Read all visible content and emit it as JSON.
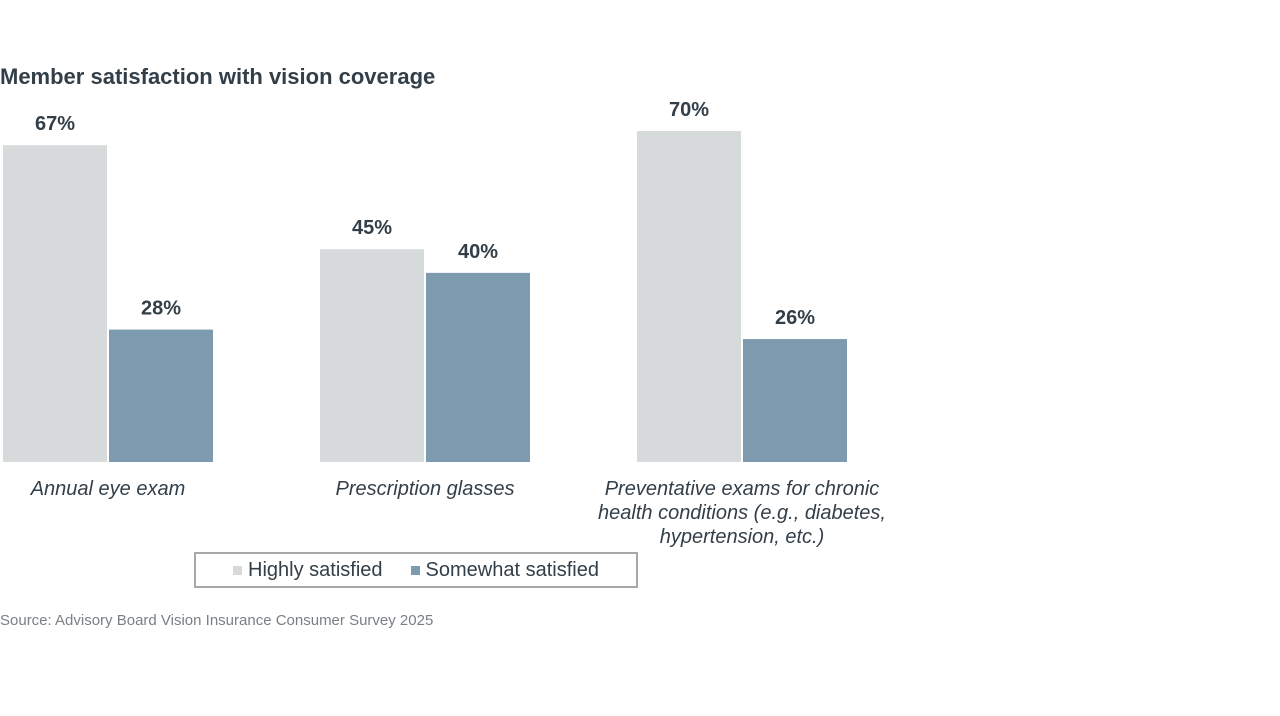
{
  "chart_data": {
    "type": "bar",
    "title": "Member satisfaction with vision coverage",
    "categories": [
      "Annual eye exam",
      "Prescription glasses",
      "Preventative exams for chronic health conditions (e.g., diabetes, hypertension, etc.)"
    ],
    "category_lines": [
      [
        "Annual eye exam"
      ],
      [
        "Prescription glasses"
      ],
      [
        "Preventative exams for chronic",
        "health conditions (e.g., diabetes,",
        "hypertension, etc.)"
      ]
    ],
    "series": [
      {
        "name": "Highly satisfied",
        "color": "#d6dadb",
        "values": [
          67,
          45,
          70
        ],
        "labels": [
          "67%",
          "45%",
          "70%"
        ]
      },
      {
        "name": "Somewhat satisfied",
        "color": "#7e9aae",
        "values": [
          28,
          40,
          26
        ],
        "labels": [
          "28%",
          "40%",
          "26%"
        ]
      }
    ],
    "xlabel": "",
    "ylabel": "",
    "ylim": [
      0,
      70
    ],
    "grid": false,
    "legend_position": "bottom",
    "source": "Source: Advisory Board Vision Insurance Consumer Survey 2025"
  }
}
